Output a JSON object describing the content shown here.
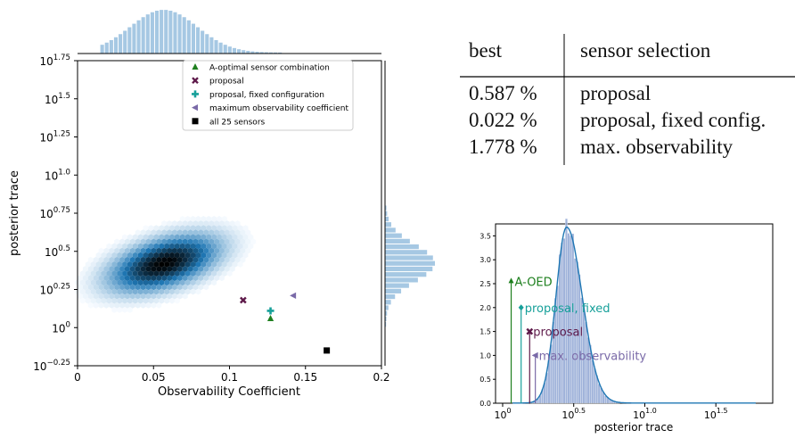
{
  "chart_data": [
    {
      "type": "scatter",
      "xlabel": "Observability Coefficient",
      "ylabel": "posterior trace",
      "xlim": [
        0,
        0.2
      ],
      "ylim": [
        -0.25,
        1.75
      ],
      "y_scale": "log10",
      "x_ticks": [
        "0",
        "0.05",
        "0.1",
        "0.15",
        "0.2"
      ],
      "y_ticks": [
        {
          "base": "10",
          "exp": "−0.25",
          "v": -0.25
        },
        {
          "base": "10",
          "exp": "0",
          "v": 0
        },
        {
          "base": "10",
          "exp": "0.25",
          "v": 0.25
        },
        {
          "base": "10",
          "exp": "0.5",
          "v": 0.5
        },
        {
          "base": "10",
          "exp": "0.75",
          "v": 0.75
        },
        {
          "base": "10",
          "exp": "1.0",
          "v": 1.0
        },
        {
          "base": "10",
          "exp": "1.25",
          "v": 1.25
        },
        {
          "base": "10",
          "exp": "1.5",
          "v": 1.5
        },
        {
          "base": "10",
          "exp": "1.75",
          "v": 1.75
        }
      ],
      "density": {
        "center": [
          0.057,
          0.42
        ],
        "spread_x": 0.024,
        "spread_y": 0.11,
        "tilt": -1.4,
        "color": "#1f77b4"
      },
      "legend_position": "top-right",
      "series": [
        {
          "name": "A-optimal sensor combination",
          "marker": "triangle",
          "color": "#1e7f1e",
          "x": 0.127,
          "y": 0.06
        },
        {
          "name": "proposal",
          "marker": "x",
          "color": "#5e1a4a",
          "x": 0.109,
          "y": 0.18
        },
        {
          "name": "proposal, fixed configuration",
          "marker": "plus",
          "color": "#17a09a",
          "x": 0.127,
          "y": 0.11
        },
        {
          "name": "maximum observability coefficient",
          "marker": "triangle-left",
          "color": "#7a6aa8",
          "x": 0.142,
          "y": 0.21
        },
        {
          "name": "all 25 sensors",
          "marker": "square",
          "color": "#000000",
          "x": 0.164,
          "y": -0.15
        }
      ],
      "marginal_x_hist": {
        "bins": 40,
        "range": [
          0.015,
          0.135
        ],
        "mean": 0.057,
        "sd": 0.022,
        "color": "#a6c8e3"
      },
      "marginal_y_hist": {
        "bins": 22,
        "range": [
          0.0,
          0.8
        ],
        "mean": 0.42,
        "sd": 0.12,
        "color": "#a6c8e3"
      }
    },
    {
      "type": "area",
      "xlabel": "posterior trace",
      "ylabel": "",
      "x_scale": "log10",
      "xlim": [
        -0.05,
        1.9
      ],
      "ylim": [
        0,
        3.75
      ],
      "x_ticks": [
        {
          "base": "10",
          "exp": "0",
          "v": 0
        },
        {
          "base": "10",
          "exp": "0.5",
          "v": 0.5
        },
        {
          "base": "10",
          "exp": "1.0",
          "v": 1.0
        },
        {
          "base": "10",
          "exp": "1.5",
          "v": 1.5
        }
      ],
      "y_ticks": [
        "0.0",
        "0.5",
        "1.0",
        "1.5",
        "2.0",
        "2.5",
        "3.0",
        "3.5"
      ],
      "density_peak": {
        "x": 0.45,
        "y": 3.68,
        "sd_left": 0.075,
        "sd_right": 0.11
      },
      "annotations": [
        {
          "label": "A-OED",
          "x": 0.06,
          "y": 2.55,
          "color": "#1e7f1e",
          "marker": "arrow"
        },
        {
          "label": "proposal, fixed",
          "x": 0.13,
          "y": 2.0,
          "color": "#17a09a",
          "marker": "diamond"
        },
        {
          "label": "proposal",
          "x": 0.19,
          "y": 1.5,
          "color": "#5e1a4a",
          "marker": "x"
        },
        {
          "label": "max. observability",
          "x": 0.23,
          "y": 1.0,
          "color": "#7a6aa8",
          "marker": "triangle-left"
        }
      ]
    }
  ],
  "table": {
    "headers": [
      "best",
      "sensor selection"
    ],
    "rows": [
      [
        "0.587 %",
        "proposal"
      ],
      [
        "0.022 %",
        "proposal, fixed config."
      ],
      [
        "1.778 %",
        "max. observability"
      ]
    ]
  }
}
